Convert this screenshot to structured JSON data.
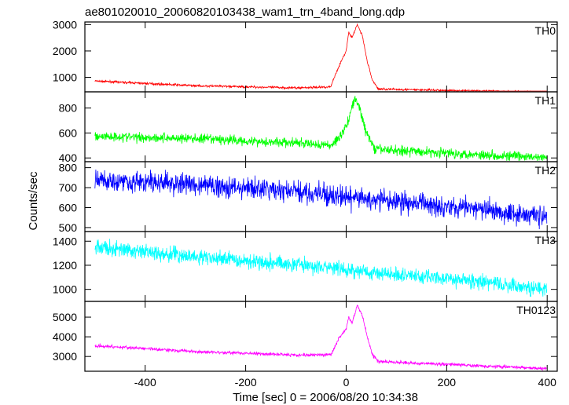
{
  "title": "ae801020010_20060820103438_wam1_trn_4band_long.qdp",
  "xlabel": "Time [sec] 0 = 2006/08/20 10:34:38",
  "ylabel": "Counts/sec",
  "chart_data": {
    "type": "line",
    "title": "ae801020010_20060820103438_wam1_trn_4band_long.qdp",
    "xlabel": "Time [sec] 0 = 2006/08/20 10:34:38",
    "ylabel": "Counts/sec",
    "xlim": [
      -520,
      420
    ],
    "xticks": [
      -400,
      -200,
      0,
      200,
      400
    ],
    "data_range": [
      -500,
      400
    ],
    "panels": [
      {
        "name": "TH0",
        "color": "#ff0000",
        "ylim": [
          450,
          3100
        ],
        "yticks": [
          1000,
          2000,
          3000
        ],
        "baseline_points": [
          [
            -500,
            860
          ],
          [
            -300,
            680
          ],
          [
            -100,
            600
          ],
          [
            -30,
            640
          ],
          [
            60,
            560
          ],
          [
            200,
            500
          ],
          [
            400,
            440
          ]
        ],
        "burst_points": [
          [
            -30,
            700
          ],
          [
            -15,
            1400
          ],
          [
            0,
            2000
          ],
          [
            5,
            2700
          ],
          [
            12,
            2500
          ],
          [
            22,
            3000
          ],
          [
            32,
            2600
          ],
          [
            42,
            1600
          ],
          [
            52,
            900
          ],
          [
            62,
            620
          ]
        ],
        "noise": 30
      },
      {
        "name": "TH1",
        "color": "#00ff00",
        "ylim": [
          370,
          930
        ],
        "yticks": [
          400,
          600,
          800
        ],
        "baseline_points": [
          [
            -500,
            575
          ],
          [
            -300,
            555
          ],
          [
            -100,
            520
          ],
          [
            -30,
            500
          ],
          [
            60,
            470
          ],
          [
            200,
            440
          ],
          [
            400,
            400
          ]
        ],
        "burst_points": [
          [
            -30,
            500
          ],
          [
            -15,
            560
          ],
          [
            0,
            650
          ],
          [
            8,
            760
          ],
          [
            18,
            880
          ],
          [
            28,
            780
          ],
          [
            40,
            600
          ],
          [
            55,
            490
          ]
        ],
        "noise": 28
      },
      {
        "name": "TH2",
        "color": "#0000ff",
        "ylim": [
          480,
          830
        ],
        "yticks": [
          500,
          600,
          700,
          800
        ],
        "baseline_points": [
          [
            -500,
            740
          ],
          [
            -300,
            715
          ],
          [
            -100,
            680
          ],
          [
            0,
            650
          ],
          [
            200,
            610
          ],
          [
            400,
            555
          ]
        ],
        "burst_points": [],
        "noise": 38
      },
      {
        "name": "TH3",
        "color": "#00ffff",
        "ylim": [
          900,
          1480
        ],
        "yticks": [
          1000,
          1200,
          1400
        ],
        "baseline_points": [
          [
            -500,
            1350
          ],
          [
            -300,
            1270
          ],
          [
            -100,
            1210
          ],
          [
            0,
            1160
          ],
          [
            200,
            1090
          ],
          [
            400,
            1000
          ]
        ],
        "burst_points": [],
        "noise": 45
      },
      {
        "name": "TH0123",
        "color": "#ff00ff",
        "ylim": [
          2250,
          5800
        ],
        "yticks": [
          3000,
          4000,
          5000
        ],
        "baseline_points": [
          [
            -500,
            3550
          ],
          [
            -300,
            3250
          ],
          [
            -100,
            3080
          ],
          [
            -30,
            3080
          ],
          [
            60,
            2750
          ],
          [
            200,
            2600
          ],
          [
            400,
            2380
          ]
        ],
        "burst_points": [
          [
            -30,
            3100
          ],
          [
            -15,
            3900
          ],
          [
            0,
            4400
          ],
          [
            5,
            5000
          ],
          [
            12,
            4700
          ],
          [
            22,
            5600
          ],
          [
            32,
            5100
          ],
          [
            42,
            4000
          ],
          [
            52,
            3100
          ],
          [
            62,
            2800
          ]
        ],
        "noise": 60
      }
    ]
  }
}
